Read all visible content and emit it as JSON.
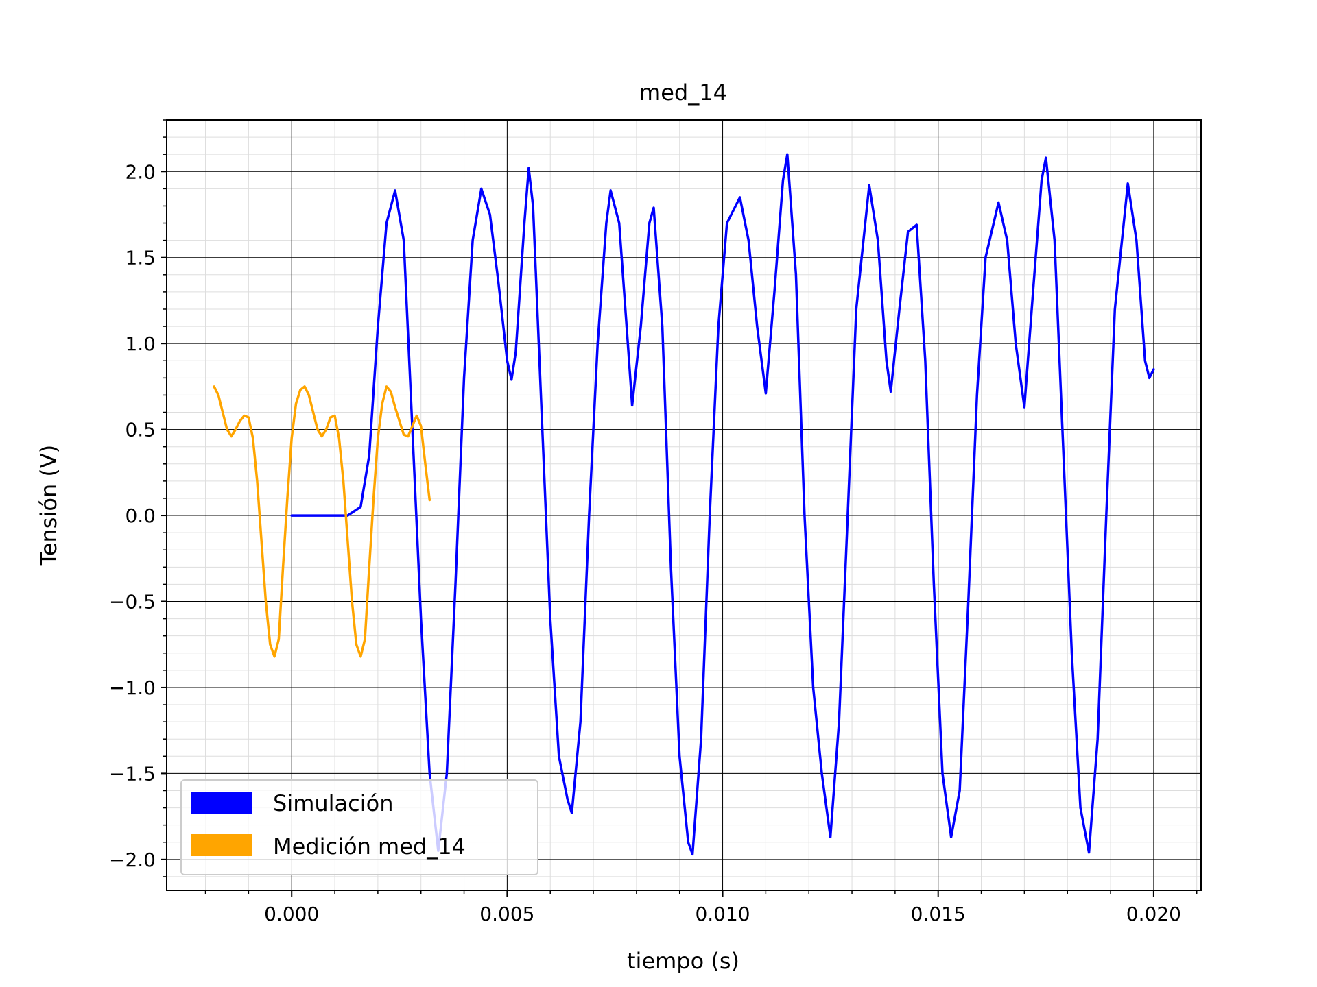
{
  "chart_data": {
    "type": "line",
    "title": "med_14",
    "xlabel": "tiempo (s)",
    "ylabel": "Tensión (V)",
    "xlim": [
      -0.0029,
      0.0211
    ],
    "ylim": [
      -2.18,
      2.3
    ],
    "x_ticks": [
      0.0,
      0.005,
      0.01,
      0.015,
      0.02
    ],
    "x_tick_labels": [
      "0.000",
      "0.005",
      "0.010",
      "0.015",
      "0.020"
    ],
    "y_ticks": [
      -2.0,
      -1.5,
      -1.0,
      -0.5,
      0.0,
      0.5,
      1.0,
      1.5,
      2.0
    ],
    "y_tick_labels": [
      "−2.0",
      "−1.5",
      "−1.0",
      "−0.5",
      "0.0",
      "0.5",
      "1.0",
      "1.5",
      "2.0"
    ],
    "grid": true,
    "minor_grid": true,
    "legend_position": "lower-left",
    "series": [
      {
        "name": "Simulación",
        "color": "#0000ff",
        "points": [
          [
            0.0,
            0.0
          ],
          [
            0.001,
            0.0
          ],
          [
            0.0013,
            0.0
          ],
          [
            0.0016,
            0.05
          ],
          [
            0.0018,
            0.35
          ],
          [
            0.002,
            1.1
          ],
          [
            0.0022,
            1.7
          ],
          [
            0.0024,
            1.89
          ],
          [
            0.0026,
            1.6
          ],
          [
            0.0028,
            0.5
          ],
          [
            0.003,
            -0.6
          ],
          [
            0.0032,
            -1.5
          ],
          [
            0.0034,
            -1.95
          ],
          [
            0.0036,
            -1.5
          ],
          [
            0.0038,
            -0.4
          ],
          [
            0.004,
            0.8
          ],
          [
            0.0042,
            1.6
          ],
          [
            0.0044,
            1.9
          ],
          [
            0.0046,
            1.75
          ],
          [
            0.0048,
            1.35
          ],
          [
            0.005,
            0.9
          ],
          [
            0.0051,
            0.79
          ],
          [
            0.0052,
            0.95
          ],
          [
            0.0054,
            1.7
          ],
          [
            0.0055,
            2.02
          ],
          [
            0.0056,
            1.8
          ],
          [
            0.0058,
            0.6
          ],
          [
            0.006,
            -0.6
          ],
          [
            0.0062,
            -1.4
          ],
          [
            0.0064,
            -1.65
          ],
          [
            0.0065,
            -1.73
          ],
          [
            0.0067,
            -1.2
          ],
          [
            0.0069,
            0.0
          ],
          [
            0.0071,
            1.0
          ],
          [
            0.0073,
            1.7
          ],
          [
            0.0074,
            1.89
          ],
          [
            0.0076,
            1.7
          ],
          [
            0.0078,
            1.0
          ],
          [
            0.0079,
            0.64
          ],
          [
            0.0081,
            1.1
          ],
          [
            0.0083,
            1.7
          ],
          [
            0.0084,
            1.79
          ],
          [
            0.0086,
            1.1
          ],
          [
            0.0088,
            -0.3
          ],
          [
            0.009,
            -1.4
          ],
          [
            0.0092,
            -1.9
          ],
          [
            0.0093,
            -1.97
          ],
          [
            0.0095,
            -1.3
          ],
          [
            0.0097,
            0.0
          ],
          [
            0.0099,
            1.1
          ],
          [
            0.0101,
            1.7
          ],
          [
            0.0104,
            1.85
          ],
          [
            0.0106,
            1.6
          ],
          [
            0.0108,
            1.1
          ],
          [
            0.011,
            0.71
          ],
          [
            0.0112,
            1.3
          ],
          [
            0.0114,
            1.95
          ],
          [
            0.0115,
            2.1
          ],
          [
            0.0117,
            1.4
          ],
          [
            0.0119,
            0.0
          ],
          [
            0.0121,
            -1.0
          ],
          [
            0.0123,
            -1.5
          ],
          [
            0.0125,
            -1.87
          ],
          [
            0.0127,
            -1.2
          ],
          [
            0.0129,
            0.0
          ],
          [
            0.0131,
            1.2
          ],
          [
            0.0134,
            1.92
          ],
          [
            0.0136,
            1.6
          ],
          [
            0.0138,
            0.9
          ],
          [
            0.0139,
            0.72
          ],
          [
            0.0141,
            1.2
          ],
          [
            0.0143,
            1.65
          ],
          [
            0.0145,
            1.69
          ],
          [
            0.0147,
            0.9
          ],
          [
            0.0149,
            -0.4
          ],
          [
            0.0151,
            -1.5
          ],
          [
            0.0153,
            -1.87
          ],
          [
            0.0155,
            -1.6
          ],
          [
            0.0157,
            -0.5
          ],
          [
            0.0159,
            0.7
          ],
          [
            0.0161,
            1.5
          ],
          [
            0.0164,
            1.82
          ],
          [
            0.0166,
            1.6
          ],
          [
            0.0168,
            1.0
          ],
          [
            0.017,
            0.63
          ],
          [
            0.0172,
            1.3
          ],
          [
            0.0174,
            1.95
          ],
          [
            0.0175,
            2.08
          ],
          [
            0.0177,
            1.6
          ],
          [
            0.0179,
            0.4
          ],
          [
            0.0181,
            -0.8
          ],
          [
            0.0183,
            -1.7
          ],
          [
            0.0185,
            -1.96
          ],
          [
            0.0187,
            -1.3
          ],
          [
            0.0189,
            0.0
          ],
          [
            0.0191,
            1.2
          ],
          [
            0.0194,
            1.93
          ],
          [
            0.0196,
            1.6
          ],
          [
            0.0198,
            0.9
          ],
          [
            0.0199,
            0.8
          ],
          [
            0.02,
            0.85
          ]
        ]
      },
      {
        "name": "Medición med_14",
        "color": "#ffa500",
        "points": [
          [
            -0.0018,
            0.75
          ],
          [
            -0.0017,
            0.7
          ],
          [
            -0.0016,
            0.6
          ],
          [
            -0.0015,
            0.5
          ],
          [
            -0.0014,
            0.46
          ],
          [
            -0.0013,
            0.5
          ],
          [
            -0.0012,
            0.55
          ],
          [
            -0.0011,
            0.58
          ],
          [
            -0.001,
            0.57
          ],
          [
            -0.0009,
            0.45
          ],
          [
            -0.0008,
            0.2
          ],
          [
            -0.0007,
            -0.15
          ],
          [
            -0.0006,
            -0.5
          ],
          [
            -0.0005,
            -0.75
          ],
          [
            -0.0004,
            -0.82
          ],
          [
            -0.0003,
            -0.72
          ],
          [
            -0.0002,
            -0.3
          ],
          [
            -0.0001,
            0.1
          ],
          [
            0.0,
            0.45
          ],
          [
            0.0001,
            0.65
          ],
          [
            0.0002,
            0.73
          ],
          [
            0.0003,
            0.75
          ],
          [
            0.0004,
            0.7
          ],
          [
            0.0005,
            0.6
          ],
          [
            0.0006,
            0.5
          ],
          [
            0.0007,
            0.46
          ],
          [
            0.0008,
            0.5
          ],
          [
            0.0009,
            0.57
          ],
          [
            0.001,
            0.58
          ],
          [
            0.0011,
            0.45
          ],
          [
            0.0012,
            0.2
          ],
          [
            0.0013,
            -0.15
          ],
          [
            0.0014,
            -0.5
          ],
          [
            0.0015,
            -0.75
          ],
          [
            0.0016,
            -0.82
          ],
          [
            0.0017,
            -0.72
          ],
          [
            0.0018,
            -0.3
          ],
          [
            0.0019,
            0.1
          ],
          [
            0.002,
            0.45
          ],
          [
            0.0021,
            0.65
          ],
          [
            0.0022,
            0.75
          ],
          [
            0.0023,
            0.72
          ],
          [
            0.0024,
            0.63
          ],
          [
            0.0025,
            0.55
          ],
          [
            0.0026,
            0.47
          ],
          [
            0.0027,
            0.46
          ],
          [
            0.0028,
            0.52
          ],
          [
            0.0029,
            0.58
          ],
          [
            0.003,
            0.52
          ],
          [
            0.0031,
            0.3
          ],
          [
            0.0032,
            0.09
          ]
        ]
      }
    ]
  }
}
